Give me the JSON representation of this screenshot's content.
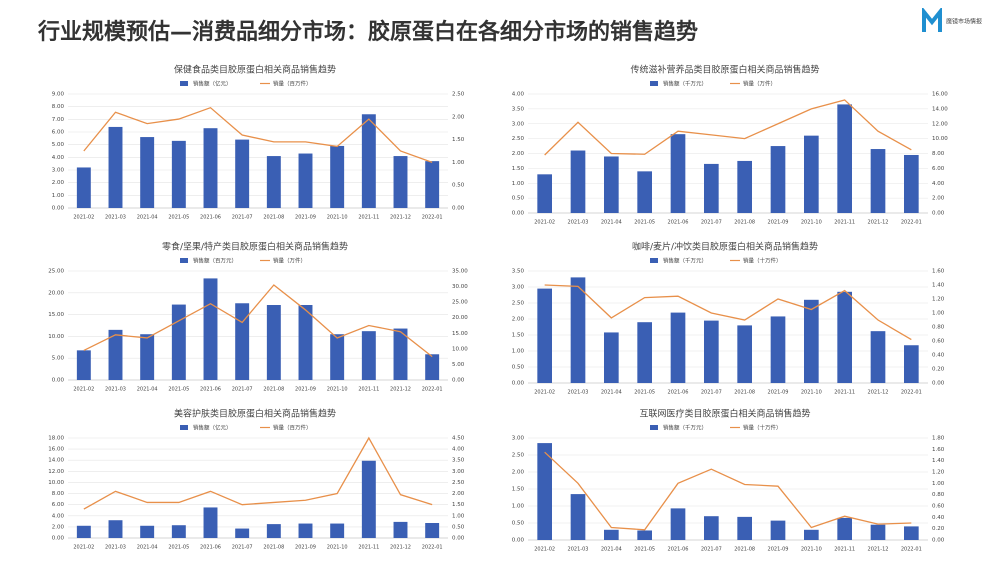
{
  "header": {
    "title": "行业规模预估—消费品细分市场：胶原蛋白在各细分市场的销售趋势",
    "logo": "魔镜市场情报"
  },
  "chart_data": [
    {
      "type": "combo",
      "title": "保健食品类目胶原蛋白相关商品销售趋势",
      "categories": [
        "2021-02",
        "2021-03",
        "2021-04",
        "2021-05",
        "2021-06",
        "2021-07",
        "2021-08",
        "2021-09",
        "2021-10",
        "2021-11",
        "2021-12",
        "2022-01"
      ],
      "series": [
        {
          "name": "销售额（亿元）",
          "type": "bar",
          "color": "#3a5fb4",
          "values": [
            3.2,
            6.4,
            5.6,
            5.3,
            6.3,
            5.4,
            4.1,
            4.3,
            4.9,
            7.4,
            4.1,
            3.7
          ]
        },
        {
          "name": "销量（百万件）",
          "type": "line",
          "axis": "y2",
          "color": "#e8904a",
          "values": [
            1.25,
            2.1,
            1.85,
            1.95,
            2.2,
            1.6,
            1.45,
            1.45,
            1.35,
            1.95,
            1.25,
            1.0
          ]
        }
      ],
      "ylim": [
        0,
        9
      ],
      "yticks": [
        {
          "value": 0,
          "label": "0.00"
        },
        {
          "value": 1,
          "label": "1.00"
        },
        {
          "value": 2,
          "label": "2.00"
        },
        {
          "value": 3,
          "label": "3.00"
        },
        {
          "value": 4,
          "label": "4.00"
        },
        {
          "value": 5,
          "label": "5.00"
        },
        {
          "value": 6,
          "label": "6.00"
        },
        {
          "value": 7,
          "label": "7.00"
        },
        {
          "value": 8,
          "label": "8.00"
        },
        {
          "value": 9,
          "label": "9.00"
        }
      ],
      "y2lim": [
        0,
        2.5
      ],
      "y2ticks": [
        {
          "value": 0,
          "label": "0.00"
        },
        {
          "value": 0.5,
          "label": "0.50"
        },
        {
          "value": 1,
          "label": "1.00"
        },
        {
          "value": 1.5,
          "label": "1.50"
        },
        {
          "value": 2,
          "label": "2.00"
        },
        {
          "value": 2.5,
          "label": "2.50"
        }
      ],
      "grid": true
    },
    {
      "type": "combo",
      "title": "传统滋补营养品类目胶原蛋白相关商品销售趋势",
      "categories": [
        "2021-02",
        "2021-03",
        "2021-04",
        "2021-05",
        "2021-06",
        "2021-07",
        "2021-08",
        "2021-09",
        "2021-10",
        "2021-11",
        "2021-12",
        "2022-01"
      ],
      "series": [
        {
          "name": "销售额（千万元）",
          "type": "bar",
          "color": "#3a5fb4",
          "values": [
            1.3,
            2.1,
            1.9,
            1.4,
            2.65,
            1.65,
            1.75,
            2.25,
            2.6,
            3.65,
            2.15,
            1.95
          ]
        },
        {
          "name": "销量（万件）",
          "type": "line",
          "axis": "y2",
          "color": "#e8904a",
          "values": [
            7.8,
            12.2,
            8.0,
            7.9,
            11.0,
            10.5,
            10.0,
            12.0,
            14.0,
            15.2,
            11.0,
            8.5
          ]
        }
      ],
      "ylim": [
        0,
        4
      ],
      "yticks": [
        {
          "value": 0,
          "label": "0.00"
        },
        {
          "value": 0.5,
          "label": "0.50"
        },
        {
          "value": 1,
          "label": "1.00"
        },
        {
          "value": 1.5,
          "label": "1.50"
        },
        {
          "value": 2,
          "label": "2.00"
        },
        {
          "value": 2.5,
          "label": "2.50"
        },
        {
          "value": 3,
          "label": "3.00"
        },
        {
          "value": 3.5,
          "label": "3.50"
        },
        {
          "value": 4,
          "label": "4.00"
        }
      ],
      "y2lim": [
        0,
        16
      ],
      "y2ticks": [
        {
          "value": 0,
          "label": "0.00"
        },
        {
          "value": 2,
          "label": "2.00"
        },
        {
          "value": 4,
          "label": "4.00"
        },
        {
          "value": 6,
          "label": "6.00"
        },
        {
          "value": 8,
          "label": "8.00"
        },
        {
          "value": 10,
          "label": "10.00"
        },
        {
          "value": 12,
          "label": "12.00"
        },
        {
          "value": 14,
          "label": "14.00"
        },
        {
          "value": 16,
          "label": "16.00"
        }
      ],
      "grid": true
    },
    {
      "type": "combo",
      "title": "零食/坚果/特产类目胶原蛋白相关商品销售趋势",
      "categories": [
        "2021-02",
        "2021-03",
        "2021-04",
        "2021-05",
        "2021-06",
        "2021-07",
        "2021-08",
        "2021-09",
        "2021-10",
        "2021-11",
        "2021-12",
        "2022-01"
      ],
      "series": [
        {
          "name": "销售额（百万元）",
          "type": "bar",
          "color": "#3a5fb4",
          "values": [
            6.8,
            11.5,
            10.5,
            17.3,
            23.3,
            17.6,
            17.2,
            17.2,
            10.5,
            11.2,
            11.8,
            5.9
          ]
        },
        {
          "name": "销量（万件）",
          "type": "line",
          "axis": "y2",
          "color": "#e8904a",
          "values": [
            9.5,
            14.5,
            13.5,
            19,
            24.5,
            18.5,
            30.5,
            22.5,
            13.5,
            17.5,
            15.5,
            7.5
          ]
        }
      ],
      "ylim": [
        0,
        25
      ],
      "yticks": [
        {
          "value": 0,
          "label": "0.00"
        },
        {
          "value": 5,
          "label": "5.00"
        },
        {
          "value": 10,
          "label": "10.00"
        },
        {
          "value": 15,
          "label": "15.00"
        },
        {
          "value": 20,
          "label": "20.00"
        },
        {
          "value": 25,
          "label": "25.00"
        }
      ],
      "y2lim": [
        0,
        35
      ],
      "y2ticks": [
        {
          "value": 0,
          "label": "0.00"
        },
        {
          "value": 5,
          "label": "5.00"
        },
        {
          "value": 10,
          "label": "10.00"
        },
        {
          "value": 15,
          "label": "15.00"
        },
        {
          "value": 20,
          "label": "20.00"
        },
        {
          "value": 25,
          "label": "25.00"
        },
        {
          "value": 30,
          "label": "30.00"
        },
        {
          "value": 35,
          "label": "35.00"
        }
      ],
      "grid": true
    },
    {
      "type": "combo",
      "title": "咖啡/麦片/冲饮类目胶原蛋白相关商品销售趋势",
      "categories": [
        "2021-02",
        "2021-03",
        "2021-04",
        "2021-05",
        "2021-06",
        "2021-07",
        "2021-08",
        "2021-09",
        "2021-10",
        "2021-11",
        "2021-12",
        "2022-01"
      ],
      "series": [
        {
          "name": "销售额（千万元）",
          "type": "bar",
          "color": "#3a5fb4",
          "values": [
            2.95,
            3.3,
            1.58,
            1.9,
            2.2,
            1.95,
            1.8,
            2.08,
            2.6,
            2.85,
            1.62,
            1.18
          ]
        },
        {
          "name": "销量（十万件）",
          "type": "line",
          "axis": "y2",
          "color": "#e8904a",
          "values": [
            1.4,
            1.38,
            0.93,
            1.22,
            1.24,
            1.0,
            0.9,
            1.2,
            1.05,
            1.32,
            0.9,
            0.62
          ]
        }
      ],
      "ylim": [
        0,
        3.5
      ],
      "yticks": [
        {
          "value": 0,
          "label": "0.00"
        },
        {
          "value": 0.5,
          "label": "0.50"
        },
        {
          "value": 1,
          "label": "1.00"
        },
        {
          "value": 1.5,
          "label": "1.50"
        },
        {
          "value": 2,
          "label": "2.00"
        },
        {
          "value": 2.5,
          "label": "2.50"
        },
        {
          "value": 3,
          "label": "3.00"
        },
        {
          "value": 3.5,
          "label": "3.50"
        }
      ],
      "y2lim": [
        0,
        1.6
      ],
      "y2ticks": [
        {
          "value": 0,
          "label": "0.00"
        },
        {
          "value": 0.2,
          "label": "0.20"
        },
        {
          "value": 0.4,
          "label": "0.40"
        },
        {
          "value": 0.6,
          "label": "0.60"
        },
        {
          "value": 0.8,
          "label": "0.80"
        },
        {
          "value": 1,
          "label": "1.00"
        },
        {
          "value": 1.2,
          "label": "1.20"
        },
        {
          "value": 1.4,
          "label": "1.40"
        },
        {
          "value": 1.6,
          "label": "1.60"
        }
      ],
      "grid": true
    },
    {
      "type": "combo",
      "title": "美容护肤类目胶原蛋白相关商品销售趋势",
      "categories": [
        "2021-02",
        "2021-03",
        "2021-04",
        "2021-05",
        "2021-06",
        "2021-07",
        "2021-08",
        "2021-09",
        "2021-10",
        "2021-11",
        "2021-12",
        "2022-01"
      ],
      "series": [
        {
          "name": "销售额（亿元）",
          "type": "bar",
          "color": "#3a5fb4",
          "values": [
            2.2,
            3.2,
            2.2,
            2.3,
            5.5,
            1.7,
            2.5,
            2.6,
            2.6,
            13.9,
            2.9,
            2.7
          ]
        },
        {
          "name": "销量（百万件）",
          "type": "line",
          "axis": "y2",
          "color": "#e8904a",
          "values": [
            1.3,
            2.1,
            1.6,
            1.6,
            2.1,
            1.5,
            1.6,
            1.7,
            2.0,
            4.5,
            1.95,
            1.5
          ]
        }
      ],
      "ylim": [
        0,
        18
      ],
      "yticks": [
        {
          "value": 0,
          "label": "0.00"
        },
        {
          "value": 2,
          "label": "2.00"
        },
        {
          "value": 4,
          "label": "4.00"
        },
        {
          "value": 6,
          "label": "6.00"
        },
        {
          "value": 8,
          "label": "8.00"
        },
        {
          "value": 10,
          "label": "10.00"
        },
        {
          "value": 12,
          "label": "12.00"
        },
        {
          "value": 14,
          "label": "14.00"
        },
        {
          "value": 16,
          "label": "16.00"
        },
        {
          "value": 18,
          "label": "18.00"
        }
      ],
      "y2lim": [
        0,
        4.5
      ],
      "y2ticks": [
        {
          "value": 0,
          "label": "0.00"
        },
        {
          "value": 0.5,
          "label": "0.50"
        },
        {
          "value": 1,
          "label": "1.00"
        },
        {
          "value": 1.5,
          "label": "1.50"
        },
        {
          "value": 2,
          "label": "2.00"
        },
        {
          "value": 2.5,
          "label": "2.50"
        },
        {
          "value": 3,
          "label": "3.00"
        },
        {
          "value": 3.5,
          "label": "3.50"
        },
        {
          "value": 4,
          "label": "4.00"
        },
        {
          "value": 4.5,
          "label": "4.50"
        }
      ],
      "grid": true
    },
    {
      "type": "combo",
      "title": "互联网医疗类目胶原蛋白相关商品销售趋势",
      "categories": [
        "2021-02",
        "2021-03",
        "2021-04",
        "2021-05",
        "2021-06",
        "2021-07",
        "2021-08",
        "2021-09",
        "2021-10",
        "2021-11",
        "2021-12",
        "2022-01"
      ],
      "series": [
        {
          "name": "销售额（千万元）",
          "type": "bar",
          "color": "#3a5fb4",
          "values": [
            2.85,
            1.35,
            0.3,
            0.28,
            0.93,
            0.7,
            0.68,
            0.57,
            0.3,
            0.65,
            0.45,
            0.4
          ]
        },
        {
          "name": "销量（十万件）",
          "type": "line",
          "axis": "y2",
          "color": "#e8904a",
          "values": [
            1.55,
            1.0,
            0.22,
            0.18,
            1.0,
            1.25,
            0.98,
            0.95,
            0.22,
            0.42,
            0.28,
            0.3
          ]
        }
      ],
      "ylim": [
        0,
        3
      ],
      "yticks": [
        {
          "value": 0,
          "label": "0.00"
        },
        {
          "value": 0.5,
          "label": "0.50"
        },
        {
          "value": 1,
          "label": "1.00"
        },
        {
          "value": 1.5,
          "label": "1.50"
        },
        {
          "value": 2,
          "label": "2.00"
        },
        {
          "value": 2.5,
          "label": "2.50"
        },
        {
          "value": 3,
          "label": "3.00"
        }
      ],
      "y2lim": [
        0,
        1.8
      ],
      "y2ticks": [
        {
          "value": 0,
          "label": "0.00"
        },
        {
          "value": 0.2,
          "label": "0.20"
        },
        {
          "value": 0.4,
          "label": "0.40"
        },
        {
          "value": 0.6,
          "label": "0.60"
        },
        {
          "value": 0.8,
          "label": "0.80"
        },
        {
          "value": 1,
          "label": "1.00"
        },
        {
          "value": 1.2,
          "label": "1.20"
        },
        {
          "value": 1.4,
          "label": "1.40"
        },
        {
          "value": 1.6,
          "label": "1.60"
        },
        {
          "value": 1.8,
          "label": "1.80"
        }
      ],
      "grid": true
    }
  ]
}
